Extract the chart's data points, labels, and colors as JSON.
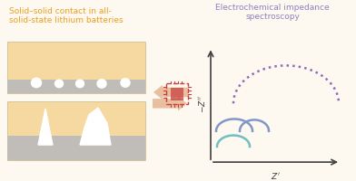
{
  "bg_color": "#fdf8f0",
  "left_title": "Solid–solid contact in all-\nsolid-state lithium batteries",
  "left_title_color": "#e8a020",
  "right_title": "Electrochemical impedance\nspectroscopy",
  "right_title_color": "#9080c0",
  "box_bg": "#f5d9a0",
  "box_border": "#c8b888",
  "gray_bar_color": "#c0bdb8",
  "white_shape_color": "#ffffff",
  "arc1_color": "#8870b8",
  "arc2_color": "#8098c8",
  "arc3_color": "#70c0c0",
  "arrow_color": "#e8c0a0",
  "chip_color": "#c84040",
  "axis_color": "#404040"
}
